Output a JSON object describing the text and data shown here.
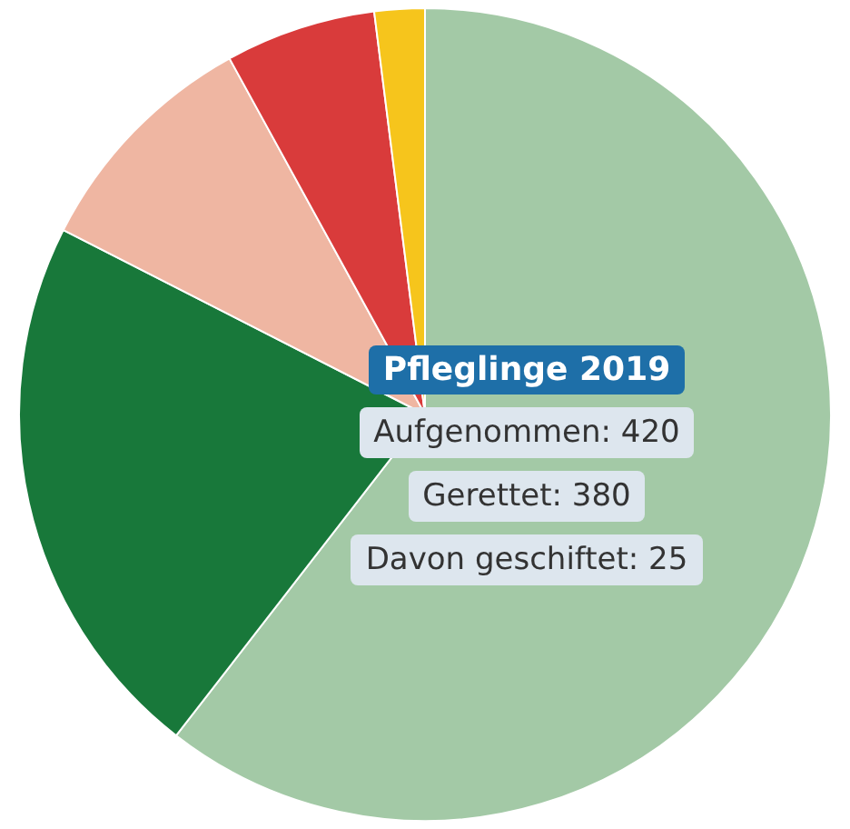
{
  "chart_data": {
    "type": "pie",
    "title": "Pfleglinge 2019",
    "categories": [
      null,
      null,
      null,
      null,
      null
    ],
    "values": [
      60.5,
      22,
      9.5,
      6,
      2
    ],
    "colors": [
      "#a3c9a6",
      "#18783a",
      "#efb6a2",
      "#d93b3b",
      "#f6c51c"
    ],
    "annotations": [
      "Aufgenommen: 420",
      "Gerettet: 380",
      "Davon geschiftet: 25"
    ],
    "legend": false
  }
}
